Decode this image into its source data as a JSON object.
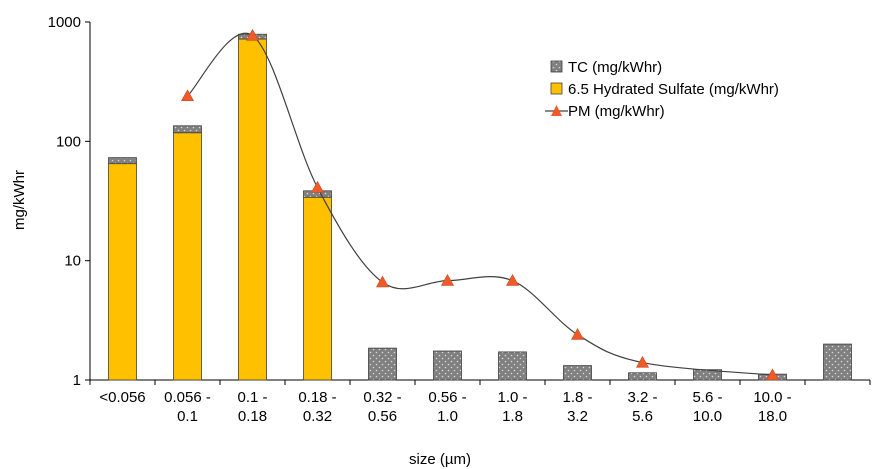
{
  "chart_data": {
    "type": "bar",
    "title": "",
    "xlabel": "size (µm)",
    "ylabel": "mg/kWhr",
    "y_scale": "log",
    "ylim": [
      1,
      1000
    ],
    "y_ticks": [
      "1",
      "10",
      "100",
      "1000"
    ],
    "y_tick_values": [
      1,
      10,
      100,
      1000
    ],
    "grid": false,
    "legend_position": "top-right",
    "categories": [
      [
        "<0.056"
      ],
      [
        "0.056 -",
        "0.1"
      ],
      [
        "0.1 -",
        "0.18"
      ],
      [
        "0.18 -",
        "0.32"
      ],
      [
        "0.32 -",
        "0.56"
      ],
      [
        "0.56 -",
        "1.0"
      ],
      [
        "1.0 -",
        "1.8"
      ],
      [
        "1.8 -",
        "3.2"
      ],
      [
        "3.2 -",
        "5.6"
      ],
      [
        "5.6 -",
        "10.0"
      ],
      [
        "10.0 -",
        "18.0"
      ],
      [
        ""
      ]
    ],
    "series": [
      {
        "name": "6.5 Hydrated Sulfate (mg/kWhr)",
        "kind": "stacked-bar-base",
        "color": "#FFC000",
        "values": [
          65,
          118,
          720,
          34,
          null,
          null,
          null,
          null,
          null,
          null,
          null,
          null
        ]
      },
      {
        "name": "TC (mg/kWhr)",
        "kind": "stacked-bar-top",
        "color": "#7f7f7f",
        "values": [
          8,
          17,
          70,
          4.5,
          1.85,
          1.75,
          1.72,
          1.32,
          1.15,
          1.22,
          1.12,
          2.0
        ]
      },
      {
        "name": "PM (mg/kWhr)",
        "kind": "line-smooth",
        "color": "#f05a28",
        "values": [
          null,
          240,
          770,
          41,
          6.6,
          6.8,
          6.8,
          2.4,
          1.4,
          null,
          1.1,
          null
        ]
      }
    ],
    "legend": [
      {
        "label": "TC (mg/kWhr)",
        "marker": "dotted-square"
      },
      {
        "label": "6.5 Hydrated Sulfate (mg/kWhr)",
        "marker": "yellow-square"
      },
      {
        "label": "PM (mg/kWhr)",
        "marker": "triangle-line"
      }
    ]
  }
}
